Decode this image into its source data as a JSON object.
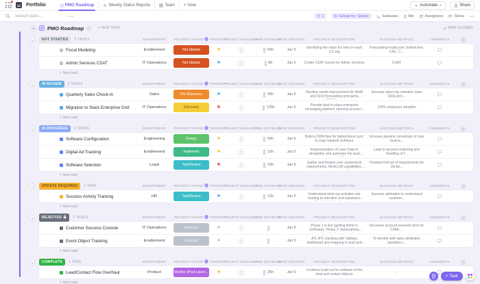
{
  "topbar": {
    "workspace": "Portfolio",
    "tabs": [
      {
        "label": "PMO Roadmap",
        "active": true
      },
      {
        "label": "Weekly Status Reports",
        "active": false
      },
      {
        "label": "Team",
        "active": false
      },
      {
        "label": "+ View",
        "active": false
      }
    ],
    "automate_label": "Automate",
    "share_label": "Share"
  },
  "toolbar": {
    "search_placeholder": "Search tasks...",
    "filter_count": "1",
    "group_by_label": "Group by: Status",
    "subtasks_label": "Subtasks",
    "me_label": "Me",
    "assignees_label": "Assignees",
    "show_label": "Show"
  },
  "list": {
    "title": "PMO Roadmap",
    "new_task_label": "+ NEW TASK",
    "hide_closed_label": "HIDE CLOSED",
    "add_row_label": "+ New task",
    "columns": [
      "DEPARTMENT",
      "PROJECT PHASE",
      "PRIORITY",
      "PROJECT MANAGER",
      "TIME ESTIMATE",
      "DATE CREATED",
      "PROJECT DESCRIPTION",
      "SUCCESS METRICS",
      "COMMENTS"
    ]
  },
  "colors": {
    "accent": "#7b68ee"
  },
  "groups": [
    {
      "name": "NOT STARTED",
      "count": "2 TASKS",
      "badge_bg": "#e3e5ea",
      "badge_color": "#5a6270",
      "locked": false,
      "tasks": [
        {
          "name": "Fiscal Modeling",
          "bullet": "#bcc2cb",
          "department": "Enablement",
          "phase": "Not Started",
          "phase_bg": "#d6511f",
          "phase_color": "#ffffff",
          "priority": "#f6c544",
          "time": "60h",
          "date": "Jan 5",
          "description": "Identifying the value for roles in each CX org",
          "metrics": "Forecasting headcount, bottom line, CAC, C..."
        },
        {
          "name": "Admin Services CSAT",
          "bullet": "#bcc2cb",
          "department": "IT Operations",
          "phase": "Not Started",
          "phase_bg": "#d6511f",
          "phase_color": "#ffffff",
          "priority": "#55b3f3",
          "time": "8h",
          "date": "Jan 5",
          "description": "Create CSAT survey for Admin Services",
          "metrics": "CSAT"
        }
      ]
    },
    {
      "name": "IN REVIEW",
      "count": "2 TASKS",
      "badge_bg": "#66b1e3",
      "badge_color": "#ffffff",
      "locked": false,
      "tasks": [
        {
          "name": "Quarterly Sales Check-In",
          "bullet": "#54a9eb",
          "department": "Sales",
          "phase": "Pre-Discovery",
          "phase_bg": "#ef8b2f",
          "phase_color": "#ffffff",
          "priority": "#55b3f3",
          "time": "40h",
          "date": "Jan 5",
          "description": "Pipeline needs improvement for WoM and QoQ forecasting and quota attainment.  SPIFF mgmt process...",
          "metrics": "Increase sales rep retention rates QoQ and ..."
        },
        {
          "name": "Migration to Slack Enterprise Grid",
          "bullet": "#54a9eb",
          "department": "IT Operations",
          "phase": "Discovery",
          "phase_bg": "#f5cd38",
          "phase_color": "#6b5a0f",
          "priority": "#e8544f",
          "time": "120h",
          "date": "Jan 5",
          "description": "Provide best-in-class enterprise messaging platform opening access to a controlled a multi-instance env...",
          "metrics": "100% employee adoption"
        }
      ]
    },
    {
      "name": "IN PROGRESS",
      "count": "3 TASKS",
      "badge_bg": "#89a9f5",
      "badge_color": "#ffffff",
      "locked": false,
      "tasks": [
        {
          "name": "Software Configuration",
          "bullet": "#5f7df2",
          "department": "Engineering",
          "phase": "Design",
          "phase_bg": "#5ec26a",
          "phase_color": "#ffffff",
          "priority": "#f6c544",
          "time": "60h",
          "date": "Jan 5",
          "description": "Build a CRM flow for bidirectional sync to map required Software",
          "metrics": "Increase pipeline conversion of new busine..."
        },
        {
          "name": "Digital Ad Tracking",
          "bullet": "#5f7df2",
          "department": "Enablement",
          "phase": "Implement",
          "phase_bg": "#3eb98a",
          "phase_color": "#ffffff",
          "priority": "#f6c544",
          "time": "15h",
          "date": "Jan 5",
          "description": "Implementation of Lean Data to streamline and automate the lead routing capabilities.",
          "metrics": "Lead to account matching and handling of f..."
        },
        {
          "name": "Software Selection",
          "bullet": "#5f7df2",
          "department": "Legal",
          "phase": "Test/Review",
          "phase_bg": "#3cbec9",
          "phase_color": "#ffffff",
          "priority": "#e8544f",
          "time": "10h",
          "date": "Jan 5",
          "description": "Gather and finalize core system/tool requirements, MoSCoW capabilities, and acceptance criteria for (...",
          "metrics": "Finalized full set of requirements for Vendo..."
        }
      ]
    },
    {
      "name": "UPDATE REQUIRED",
      "count": "1 TASK",
      "badge_bg": "#f6b02f",
      "badge_color": "#6e4d05",
      "locked": false,
      "tasks": [
        {
          "name": "Success Activity Tracking",
          "bullet": "#f6b02f",
          "department": "HR",
          "phase": "Test/Review",
          "phase_bg": "#3cbec9",
          "phase_color": "#ffffff",
          "priority": "#55b3f3",
          "time": "12h",
          "date": "Jan 5",
          "description": "Understand what rep activities are leading to retention and expansion within their book of accounts.",
          "metrics": "Success attribution to understand custome..."
        }
      ]
    },
    {
      "name": "REJECTED",
      "count": "2 TASKS",
      "badge_bg": "#69707d",
      "badge_color": "#ffffff",
      "locked": true,
      "tasks": [
        {
          "name": "Customer Success Console",
          "bullet": "#646c79",
          "department": "IT Operations",
          "phase": "Rejected",
          "phase_bg": "#bcc2cb",
          "phase_color": "#eef0f4",
          "priority": "#c3c8d0",
          "time": "",
          "date": "Jan 5",
          "description": "Phase 1 is live (getting fields in Software).  Phase 2: Automations requirements gathering vs. vendor pur...",
          "metrics": "Decrease account research time for CSMs ..."
        },
        {
          "name": "Event Object Tracking",
          "bullet": "#646c79",
          "department": "Enablement",
          "phase": "Rejected",
          "phase_bg": "#bcc2cb",
          "phase_color": "#eef0f4",
          "priority": "#c3c8d0",
          "time": "",
          "date": "Jan 5",
          "description": "ATL BTL tracking with Tableau dashboard and mapping to lead and contact objects",
          "metrics": "To identify with sales attribution variables (..."
        }
      ]
    },
    {
      "name": "COMPLETE",
      "count": "1 TASK",
      "badge_bg": "#2fb344",
      "badge_color": "#ffffff",
      "locked": false,
      "tasks": [
        {
          "name": "Lead/Contact Flow Overhaul",
          "bullet": "#2fb344",
          "department": "Product",
          "phase": "Monitor (Post-Launc...",
          "phase_bg": "#b467e3",
          "phase_color": "#ffffff",
          "priority": "#f6c544",
          "time": "25h",
          "date": "Jan 5",
          "description": "Continue build out for software of the lead and contact objects",
          "metrics": "–"
        }
      ]
    }
  ],
  "fab": {
    "task_label": "+ Task"
  }
}
